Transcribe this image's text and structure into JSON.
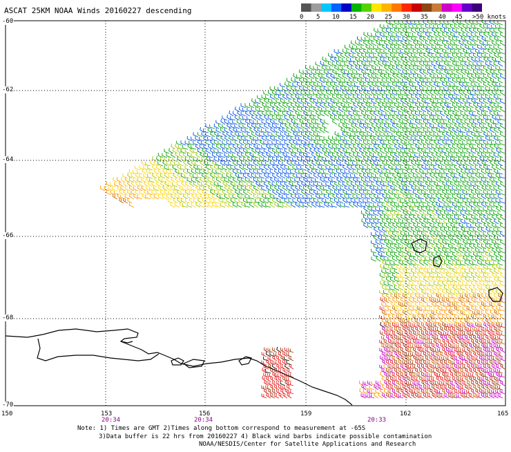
{
  "title": "ASCAT 25KM NOAA Winds 20160227 descending",
  "legend": {
    "colors": [
      "#555555",
      "#9c9c9c",
      "#00c8ff",
      "#0064ff",
      "#0000c8",
      "#00b400",
      "#55d200",
      "#ffe600",
      "#ffb400",
      "#ff7800",
      "#ff2800",
      "#c80000",
      "#8b4513",
      "#c87a3c",
      "#d000c8",
      "#ff00ff",
      "#6400c8",
      "#3c0078"
    ],
    "labels": [
      "0",
      "5",
      "10",
      "15",
      "20",
      "25",
      "30",
      "35",
      "40",
      "45",
      ">50 knots"
    ]
  },
  "map": {
    "lat_labels": [
      "-60",
      "-62",
      "-64",
      "-66",
      "-68",
      "-70"
    ],
    "lon_labels": [
      "150",
      "153",
      "156",
      "159",
      "162",
      "165"
    ],
    "time_labels": [
      "20:34",
      "20:34",
      "20:33"
    ]
  },
  "notes": [
    "Note: 1) Times are GMT 2)Times along bottom correspond to measurement at -65S",
    "3)Data buffer is 22 hrs from 20160227 4) Black wind barbs indicate possible contamination",
    "NOAA/NESDIS/Center for Satellite Applications and Research"
  ],
  "wind_colors": {
    "dark_orange": "#c86400",
    "orange": "#ff9600",
    "yellow": "#ffd200",
    "yellow_green": "#a0c800",
    "green": "#00a000",
    "blue": "#0050e6",
    "red": "#e61e1e",
    "brown": "#a03c14",
    "magenta": "#c800c8",
    "contaminated": "#000000"
  }
}
